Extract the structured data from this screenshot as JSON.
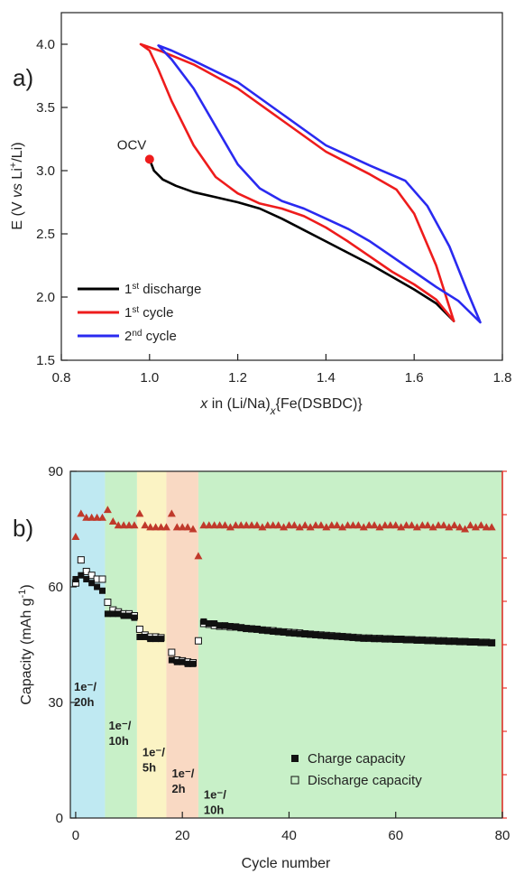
{
  "panel_a": {
    "letter": "a)",
    "ylabel": "E (V vs Li⁺/Li)",
    "xlabel": "x in (Li/Na)x{Fe(DSBDC)}",
    "ocv_label": "OCV",
    "legend": [
      {
        "sup": "st",
        "pre": "1",
        "post": " discharge"
      },
      {
        "sup": "st",
        "pre": "1",
        "post": " cycle"
      },
      {
        "sup": "nd",
        "pre": "2",
        "post": " cycle"
      }
    ]
  },
  "panel_b": {
    "letter": "b)",
    "ylabel": "Capacity (mAh g⁻¹)",
    "xlabel": "Cycle number",
    "legend": {
      "charge": "Charge capacity",
      "discharge": "Discharge capacity"
    },
    "rates": [
      {
        "l1": "1e⁻/",
        "l2": "20h"
      },
      {
        "l1": "1e⁻/",
        "l2": "10h"
      },
      {
        "l1": "1e⁻/",
        "l2": "5h"
      },
      {
        "l1": "1e⁻/",
        "l2": "2h"
      },
      {
        "l1": "1e⁻/",
        "l2": "10h"
      }
    ]
  },
  "chart_data": [
    {
      "type": "line",
      "xlabel": "x in (Li/Na)x{Fe(DSBDC)}",
      "ylabel": "E (V vs Li+/Li)",
      "xlim": [
        0.8,
        1.8
      ],
      "ylim": [
        1.5,
        4.25
      ],
      "xticks": [
        "0.8",
        "1.0",
        "1.2",
        "1.4",
        "1.6",
        "1.8"
      ],
      "yticks": [
        "1.5",
        "2.0",
        "2.5",
        "3.0",
        "3.5",
        "4.0"
      ],
      "colors": {
        "first_discharge": "#000000",
        "first_cycle": "#ee1c1c",
        "second_cycle": "#2a2af0",
        "ocv": "#ee1c1c"
      },
      "annotations": [
        {
          "text": "OCV",
          "x": 1.0,
          "y": 3.09
        }
      ],
      "series": [
        {
          "name": "1st discharge",
          "x": [
            1.0,
            1.01,
            1.03,
            1.06,
            1.1,
            1.15,
            1.2,
            1.25,
            1.3,
            1.35,
            1.4,
            1.45,
            1.5,
            1.55,
            1.6,
            1.65,
            1.69
          ],
          "y": [
            3.09,
            3.0,
            2.93,
            2.88,
            2.83,
            2.79,
            2.75,
            2.7,
            2.62,
            2.53,
            2.44,
            2.35,
            2.26,
            2.16,
            2.06,
            1.95,
            1.81
          ]
        },
        {
          "name": "1st cycle",
          "x": [
            1.69,
            1.65,
            1.6,
            1.55,
            1.5,
            1.45,
            1.4,
            1.35,
            1.3,
            1.25,
            1.2,
            1.15,
            1.1,
            1.05,
            1.02,
            1.0,
            0.98,
            1.03,
            1.1,
            1.2,
            1.3,
            1.4,
            1.5,
            1.56,
            1.6,
            1.65,
            1.69
          ],
          "y": [
            1.81,
            1.98,
            2.1,
            2.2,
            2.32,
            2.44,
            2.55,
            2.64,
            2.7,
            2.74,
            2.82,
            2.95,
            3.2,
            3.55,
            3.8,
            3.95,
            4.0,
            3.94,
            3.84,
            3.65,
            3.4,
            3.15,
            2.97,
            2.85,
            2.66,
            2.25,
            1.81
          ]
        },
        {
          "name": "2nd cycle",
          "x": [
            1.75,
            1.7,
            1.65,
            1.6,
            1.55,
            1.5,
            1.45,
            1.4,
            1.35,
            1.3,
            1.25,
            1.2,
            1.15,
            1.1,
            1.05,
            1.02,
            1.05,
            1.1,
            1.2,
            1.3,
            1.4,
            1.5,
            1.58,
            1.63,
            1.68,
            1.72,
            1.75
          ],
          "y": [
            1.8,
            1.97,
            2.08,
            2.2,
            2.32,
            2.44,
            2.54,
            2.62,
            2.7,
            2.76,
            2.86,
            3.05,
            3.35,
            3.65,
            3.88,
            3.99,
            3.95,
            3.87,
            3.7,
            3.45,
            3.2,
            3.04,
            2.92,
            2.72,
            2.4,
            2.05,
            1.8
          ]
        }
      ]
    },
    {
      "type": "scatter",
      "xlabel": "Cycle number",
      "ylabel": "Capacity (mAh g-1)",
      "xlim": [
        -1,
        80
      ],
      "ylim": [
        0,
        90
      ],
      "xticks": [
        "0",
        "20",
        "40",
        "60",
        "80"
      ],
      "yticks": [
        "0",
        "30",
        "60",
        "90"
      ],
      "right_axis": {
        "color": "#e8332a",
        "ticks_visible": false
      },
      "rate_regions": [
        {
          "label": "1e-/20h",
          "x_start": -1,
          "x_end": 5.5,
          "color": "#bfe9f2"
        },
        {
          "label": "1e-/10h",
          "x_start": 5.5,
          "x_end": 11.5,
          "color": "#c8f0c8"
        },
        {
          "label": "1e-/5h",
          "x_start": 11.5,
          "x_end": 17,
          "color": "#fbf3c4"
        },
        {
          "label": "1e-/2h",
          "x_start": 17,
          "x_end": 23,
          "color": "#f9d9c3"
        },
        {
          "label": "1e-/10h",
          "x_start": 23,
          "x_end": 80,
          "color": "#c8f0c8"
        }
      ],
      "series": [
        {
          "name": "Charge capacity",
          "marker": "filled-square",
          "x": [
            0,
            1,
            2,
            3,
            4,
            5,
            6,
            7,
            8,
            9,
            10,
            11,
            12,
            13,
            14,
            15,
            16,
            18,
            19,
            20,
            21,
            22,
            24,
            25,
            26,
            27,
            28,
            29,
            30,
            31,
            32,
            33,
            34,
            35,
            36,
            37,
            38,
            39,
            40,
            41,
            42,
            43,
            44,
            45,
            46,
            47,
            48,
            49,
            50,
            51,
            52,
            53,
            54,
            55,
            56,
            57,
            58,
            59,
            60,
            61,
            62,
            63,
            64,
            65,
            66,
            67,
            68,
            69,
            70,
            71,
            72,
            73,
            74,
            75,
            76,
            77,
            78
          ],
          "y": [
            62,
            63,
            62,
            61,
            60,
            59,
            53,
            53,
            53,
            52.5,
            52.5,
            52,
            47,
            47,
            46.5,
            46.5,
            46.5,
            41,
            40.5,
            40.5,
            40,
            40,
            51,
            50.5,
            50.5,
            50,
            50,
            49.8,
            49.6,
            49.4,
            49.2,
            49,
            49,
            48.8,
            48.6,
            48.4,
            48.3,
            48.2,
            48,
            47.9,
            47.8,
            47.7,
            47.6,
            47.5,
            47.4,
            47.3,
            47.2,
            47.1,
            47,
            46.9,
            46.8,
            46.7,
            46.6,
            46.6,
            46.5,
            46.5,
            46.4,
            46.4,
            46.3,
            46.3,
            46.2,
            46.2,
            46.1,
            46.1,
            46,
            46,
            45.9,
            45.9,
            45.8,
            45.8,
            45.7,
            45.7,
            45.6,
            45.6,
            45.5,
            45.5,
            45.4
          ]
        },
        {
          "name": "Discharge capacity",
          "marker": "open-square",
          "x": [
            0,
            1,
            2,
            3,
            4,
            5,
            6,
            7,
            8,
            9,
            10,
            11,
            12,
            13,
            14,
            15,
            16,
            18,
            19,
            20,
            21,
            22,
            23,
            24,
            25,
            26,
            27,
            28,
            29,
            30,
            31,
            32,
            33,
            34,
            35,
            36,
            37,
            38,
            39,
            40,
            41,
            42,
            43,
            44,
            45,
            46,
            47,
            48,
            49,
            50,
            51,
            52,
            53,
            54,
            55,
            56,
            57,
            58,
            59,
            60,
            61,
            62,
            63,
            64,
            65,
            66,
            67,
            68,
            69,
            70,
            71,
            72,
            73,
            74,
            75,
            76,
            77,
            78
          ],
          "y": [
            61,
            67,
            64,
            63,
            62,
            62,
            56,
            54,
            53.5,
            53,
            53,
            52.5,
            49,
            47.5,
            47,
            47,
            46.8,
            43,
            41,
            40.8,
            40.5,
            40.3,
            46,
            50.5,
            50.3,
            50,
            49.8,
            49.8,
            49.6,
            49.6,
            49.4,
            49.2,
            49.1,
            49,
            48.8,
            48.7,
            48.6,
            48.4,
            48.3,
            48.2,
            48.1,
            48,
            47.8,
            47.7,
            47.6,
            47.5,
            47.4,
            47.3,
            47.2,
            47.1,
            47,
            46.9,
            46.8,
            46.7,
            46.7,
            46.6,
            46.6,
            46.5,
            46.5,
            46.4,
            46.4,
            46.3,
            46.3,
            46.2,
            46.2,
            46.1,
            46.1,
            46,
            46,
            45.9,
            45.9,
            45.8,
            45.8,
            45.7,
            45.7,
            45.6,
            45.6,
            45.5
          ]
        },
        {
          "name": "",
          "marker": "triangle",
          "color": "#c0392b",
          "x": [
            0,
            1,
            2,
            3,
            4,
            5,
            6,
            7,
            8,
            9,
            10,
            11,
            12,
            13,
            14,
            15,
            16,
            17,
            18,
            19,
            20,
            21,
            22,
            23,
            24,
            25,
            26,
            27,
            28,
            29,
            30,
            31,
            32,
            33,
            34,
            35,
            36,
            37,
            38,
            39,
            40,
            41,
            42,
            43,
            44,
            45,
            46,
            47,
            48,
            49,
            50,
            51,
            52,
            53,
            54,
            55,
            56,
            57,
            58,
            59,
            60,
            61,
            62,
            63,
            64,
            65,
            66,
            67,
            68,
            69,
            70,
            71,
            72,
            73,
            74,
            75,
            76,
            77,
            78
          ],
          "y": [
            73,
            79,
            78,
            78,
            78,
            78,
            80,
            77,
            76,
            76,
            76,
            76,
            79,
            76,
            75.5,
            75.5,
            75.5,
            75.5,
            79,
            75.5,
            75.5,
            75.5,
            75,
            68,
            76,
            76,
            76,
            76,
            76,
            75.5,
            76,
            76,
            76,
            76,
            76,
            75.5,
            76,
            76,
            76,
            75.5,
            76,
            76,
            75.5,
            76,
            75.5,
            76,
            76,
            75.5,
            76,
            76,
            75.5,
            76,
            76,
            76,
            75.5,
            76,
            76,
            75.5,
            76,
            76,
            76,
            75.5,
            76,
            76,
            75.5,
            76,
            76,
            75.5,
            76,
            76,
            75.5,
            76,
            75.5,
            75,
            76,
            75.5,
            76,
            75.5,
            75.5
          ]
        }
      ]
    }
  ]
}
